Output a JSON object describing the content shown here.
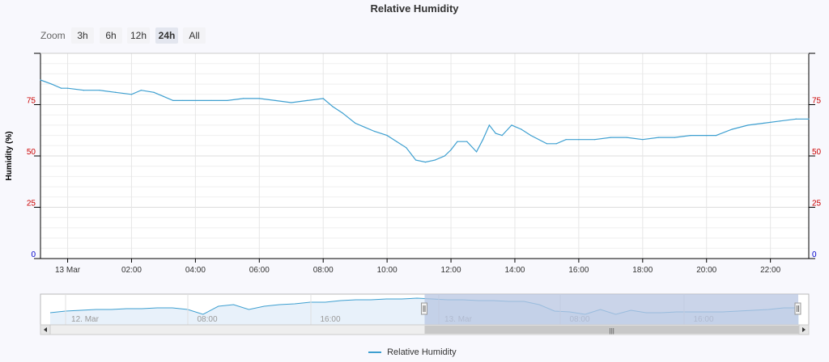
{
  "title": "Relative Humidity",
  "zoom": {
    "label": "Zoom",
    "buttons": [
      {
        "label": "3h",
        "active": false
      },
      {
        "label": "6h",
        "active": false
      },
      {
        "label": "12h",
        "active": false
      },
      {
        "label": "24h",
        "active": true
      },
      {
        "label": "All",
        "active": false
      }
    ]
  },
  "legend": {
    "label": "Relative Humidity",
    "color": "#3d9fd0"
  },
  "colors": {
    "line": "#3d9fd0",
    "axis_left_labels": "#cc0000",
    "axis_zero_label": "#0000cc",
    "navigator_mask": "#b8c6e2"
  },
  "chart_data": {
    "type": "line",
    "title": "Relative Humidity",
    "xlabel": "",
    "ylabel": "Humidity (%)",
    "ylim": [
      0,
      100
    ],
    "yticks": [
      0,
      25,
      50,
      75
    ],
    "yticks_labels": [
      "0",
      "25",
      "50",
      "75"
    ],
    "xlim_hours": [
      -0.85,
      23.2
    ],
    "xticks": [
      {
        "h": 0,
        "label": "13 Mar"
      },
      {
        "h": 2,
        "label": "02:00"
      },
      {
        "h": 4,
        "label": "04:00"
      },
      {
        "h": 6,
        "label": "06:00"
      },
      {
        "h": 8,
        "label": "08:00"
      },
      {
        "h": 10,
        "label": "10:00"
      },
      {
        "h": 12,
        "label": "12:00"
      },
      {
        "h": 14,
        "label": "14:00"
      },
      {
        "h": 16,
        "label": "16:00"
      },
      {
        "h": 18,
        "label": "18:00"
      },
      {
        "h": 20,
        "label": "20:00"
      },
      {
        "h": 22,
        "label": "22:00"
      }
    ],
    "grid": true,
    "legend_position": "bottom-center",
    "series": [
      {
        "name": "Relative Humidity",
        "x": [
          -0.85,
          -0.5,
          -0.2,
          0,
          0.5,
          1,
          1.5,
          2,
          2.3,
          2.7,
          3,
          3.3,
          3.6,
          4,
          4.5,
          5,
          5.5,
          6,
          6.5,
          7,
          7.5,
          8,
          8.3,
          8.6,
          9,
          9.3,
          9.6,
          10,
          10.3,
          10.6,
          10.9,
          11.2,
          11.5,
          11.8,
          12,
          12.2,
          12.5,
          12.8,
          13.0,
          13.2,
          13.4,
          13.6,
          13.9,
          14.2,
          14.5,
          15,
          15.3,
          15.6,
          16,
          16.5,
          17,
          17.5,
          18,
          18.5,
          19,
          19.5,
          20,
          20.3,
          20.8,
          21.3,
          21.8,
          22.3,
          22.8,
          23.2
        ],
        "y": [
          87,
          85,
          83,
          83,
          82,
          82,
          81,
          80,
          82,
          81,
          79,
          77,
          77,
          77,
          77,
          77,
          78,
          78,
          77,
          76,
          77,
          78,
          74,
          71,
          66,
          64,
          62,
          60,
          57,
          54,
          48,
          47,
          48,
          50,
          53,
          57,
          57,
          52,
          58,
          65,
          61,
          60,
          65,
          63,
          60,
          56,
          56,
          58,
          58,
          58,
          59,
          59,
          58,
          59,
          59,
          60,
          60,
          60,
          63,
          65,
          66,
          67,
          68,
          68
        ]
      }
    ]
  },
  "navigator": {
    "labels": [
      "12. Mar",
      "08:00",
      "16:00",
      "13. Mar",
      "08:00",
      "16:00"
    ],
    "series_y": [
      62,
      64,
      65,
      66,
      66,
      67,
      67,
      68,
      68,
      66,
      60,
      70,
      72,
      66,
      70,
      72,
      73,
      75,
      75,
      77,
      78,
      78,
      79,
      79,
      80,
      79,
      78,
      78,
      77,
      77,
      76,
      76,
      72,
      64,
      63,
      60,
      66,
      60,
      65,
      62,
      62,
      63,
      63,
      63,
      63,
      64,
      65,
      66,
      68,
      68
    ],
    "selected_from": 0.5,
    "selected_to": 1.0
  }
}
